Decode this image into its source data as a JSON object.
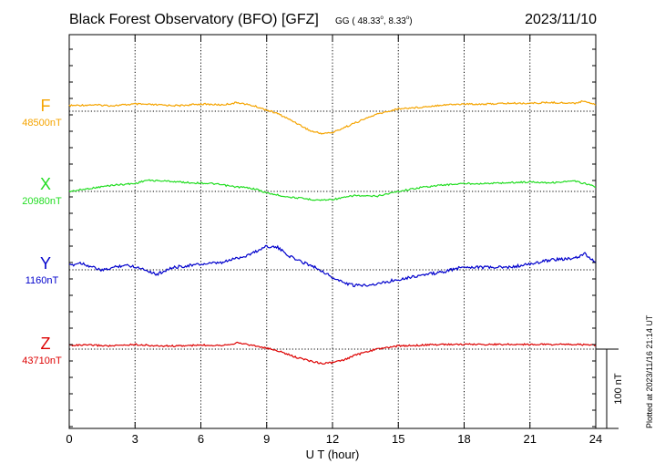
{
  "header": {
    "title": "Black Forest Observatory (BFO)  [GFZ]",
    "coords_prefix": "GG ( 48.33",
    "coords_sep": ",   8.33",
    "coords_suffix": ")",
    "date": "2023/11/10"
  },
  "side_note": "Plotted at 2023/11/16 21:14 UT",
  "chart_data": {
    "type": "line",
    "title": "Black Forest Observatory (BFO)  [GFZ]",
    "xlabel": "U T (hour)",
    "xlim": [
      0,
      24
    ],
    "xticks": [
      0,
      3,
      6,
      9,
      12,
      15,
      18,
      21,
      24
    ],
    "xtick_labels": [
      "0",
      "3",
      "6",
      "9",
      "12",
      "15",
      "18",
      "21",
      "24"
    ],
    "grid": true,
    "scale_bar_label": "100 nT",
    "scale_bar_nT": 100,
    "series": [
      {
        "name": "F",
        "baseline_label": "48500nT",
        "baseline": 48500,
        "color": "#f5a400",
        "x": [
          0,
          1,
          2,
          3,
          4,
          5,
          6,
          7,
          7.7,
          8.5,
          9.5,
          10.3,
          11,
          11.5,
          12,
          12.5,
          13,
          14,
          15,
          16,
          17,
          18,
          19,
          20,
          21,
          22,
          23,
          23.5,
          24
        ],
        "y": [
          48507,
          48508,
          48507,
          48509,
          48508,
          48507,
          48509,
          48508,
          48511,
          48506,
          48497,
          48486,
          48475,
          48472,
          48473,
          48479,
          48485,
          48496,
          48503,
          48505,
          48508,
          48509,
          48509,
          48510,
          48510,
          48511,
          48510,
          48513,
          48508
        ]
      },
      {
        "name": "X",
        "baseline_label": "20980nT",
        "baseline": 20980,
        "color": "#22dd22",
        "x": [
          0,
          1,
          2,
          3,
          3.5,
          4.5,
          5.5,
          6.5,
          7,
          7.5,
          8,
          8.5,
          9,
          10,
          11,
          11.5,
          12,
          12.5,
          13,
          13.5,
          14,
          15,
          16,
          17,
          18,
          19,
          20,
          21,
          22,
          23,
          23.5,
          24
        ],
        "y": [
          20980,
          20984,
          20988,
          20990,
          20994,
          20993,
          20991,
          20990,
          20988,
          20986,
          20985,
          20983,
          20978,
          20973,
          20970,
          20969,
          20970,
          20972,
          20975,
          20974,
          20974,
          20980,
          20985,
          20988,
          20990,
          20990,
          20991,
          20992,
          20991,
          20993,
          20990,
          20986
        ]
      },
      {
        "name": "Y",
        "baseline_label": "1160nT",
        "baseline": 1160,
        "color": "#0000cc",
        "x": [
          0,
          0.5,
          1,
          1.5,
          2,
          2.5,
          3,
          3.5,
          4,
          4.5,
          5,
          6,
          7,
          7.5,
          8,
          8.5,
          9,
          9.5,
          10,
          10.5,
          11,
          11.5,
          12,
          12.5,
          13,
          14,
          15,
          16,
          17,
          18,
          19,
          20,
          21,
          22,
          23,
          23.5,
          24
        ],
        "y": [
          1165,
          1169,
          1164,
          1159,
          1163,
          1166,
          1164,
          1160,
          1154,
          1161,
          1164,
          1167,
          1169,
          1174,
          1177,
          1183,
          1190,
          1188,
          1178,
          1171,
          1166,
          1159,
          1150,
          1144,
          1140,
          1142,
          1148,
          1153,
          1157,
          1164,
          1163,
          1163,
          1167,
          1173,
          1174,
          1180,
          1169
        ]
      },
      {
        "name": "Z",
        "baseline_label": "43710nT",
        "baseline": 43710,
        "color": "#dd0000",
        "x": [
          0,
          1,
          2,
          3,
          4,
          5,
          6,
          7,
          7.7,
          8.5,
          9.5,
          10.3,
          11,
          11.5,
          12,
          12.5,
          13,
          14,
          15,
          16,
          17,
          18,
          19,
          20,
          21,
          22,
          23,
          24
        ],
        "y": [
          43715,
          43715,
          43714,
          43716,
          43714,
          43714,
          43715,
          43715,
          43718,
          43714,
          43708,
          43700,
          43695,
          43692,
          43693,
          43696,
          43702,
          43710,
          43714,
          43715,
          43716,
          43716,
          43716,
          43716,
          43716,
          43716,
          43716,
          43715
        ]
      }
    ]
  }
}
